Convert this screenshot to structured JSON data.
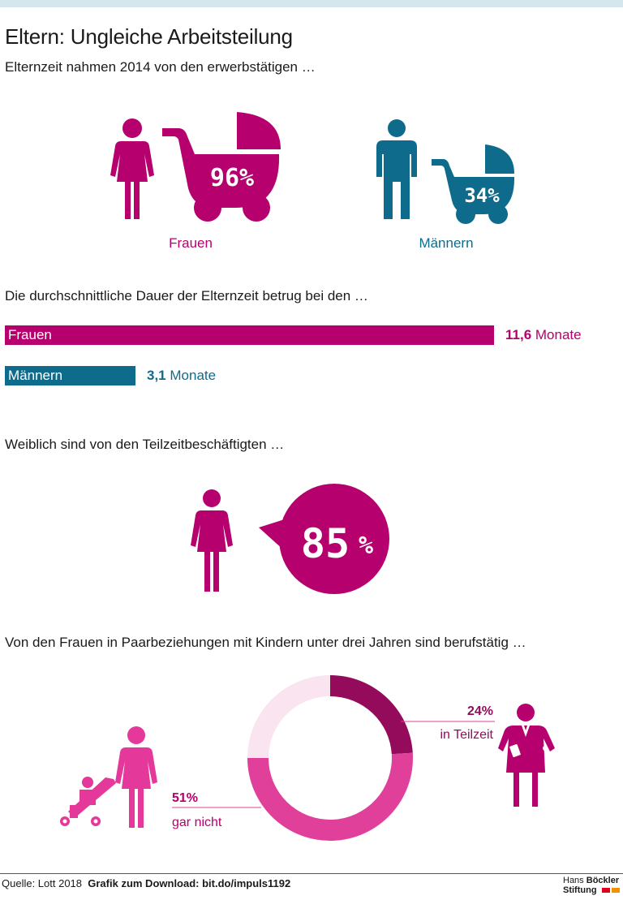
{
  "title": "Eltern: Ungleiche Arbeitsteilung",
  "colors": {
    "women": "#b5006d",
    "men": "#0f6b8c",
    "women_light": "#e0409a",
    "women_dark": "#940b5c",
    "women_pale": "#fae4f0",
    "baby": "#e4389a"
  },
  "icons": [
    "woman-icon",
    "man-icon",
    "stroller-icon",
    "speech-bubble-icon",
    "businesswoman-icon"
  ],
  "section1": {
    "heading": "Elternzeit nahmen 2014 von den erwerbstätigen …",
    "women": {
      "label": "Frauen",
      "value": 96,
      "value_text": "96%"
    },
    "men": {
      "label": "Männern",
      "value": 34,
      "value_text": "34%"
    }
  },
  "section2": {
    "heading": "Die durchschnittliche Dauer der Elternzeit betrug bei den …",
    "unit": "Monate",
    "women": {
      "label": "Frauen",
      "value": 11.6,
      "value_text": "11,6"
    },
    "men": {
      "label": "Männern",
      "value": 3.1,
      "value_text": "3,1"
    }
  },
  "section3": {
    "heading": "Weiblich sind von den Teilzeitbeschäftigten …",
    "value": 85,
    "value_text": "85",
    "unit": "%"
  },
  "section4": {
    "heading": "Von den Frauen in Paarbeziehungen mit Kindern unter drei Jahren sind berufstätig …",
    "parttime": {
      "value_text": "24%",
      "label": "in Teilzeit"
    },
    "notworking": {
      "value_text": "51%",
      "label": "gar nicht"
    }
  },
  "chart_data": [
    {
      "type": "bar",
      "categories": [
        "Frauen",
        "Männern"
      ],
      "values": [
        96,
        34
      ],
      "title": "Elternzeit nahmen 2014 von den erwerbstätigen …",
      "unit": "%"
    },
    {
      "type": "bar",
      "orientation": "horizontal",
      "categories": [
        "Frauen",
        "Männern"
      ],
      "values": [
        11.6,
        3.1
      ],
      "title": "Die durchschnittliche Dauer der Elternzeit betrug bei den …",
      "unit": "Monate"
    },
    {
      "type": "pie",
      "title": "Von den Frauen in Paarbeziehungen mit Kindern unter drei Jahren sind berufstätig …",
      "categories": [
        "in Teilzeit",
        "",
        "gar nicht"
      ],
      "values": [
        24,
        25,
        51
      ]
    }
  ],
  "footer": {
    "source": "Quelle: Lott 2018",
    "download": "Grafik zum Download: bit.do/impuls1192",
    "logo_line1_a": "Hans",
    "logo_line1_b": "Böckler",
    "logo_line2": "Stiftung"
  }
}
